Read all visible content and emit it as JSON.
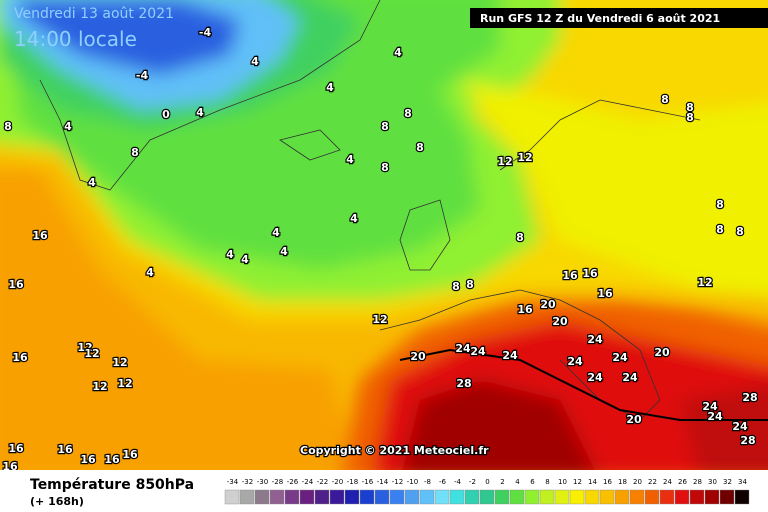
{
  "header": {
    "date": "Vendredi 13 août 2021",
    "local_time": "14:00 locale",
    "run": "Run GFS 12 Z du Vendredi 6 août 2021"
  },
  "copyright": "Copyright © 2021 Meteociel.fr",
  "footer": {
    "title": "Température 850hPa",
    "lead": "(+ 168h)"
  },
  "legend": {
    "labels": [
      -34,
      -32,
      -30,
      -28,
      -26,
      -24,
      -22,
      -20,
      -18,
      -16,
      -14,
      -12,
      -10,
      -8,
      -6,
      -4,
      -2,
      0,
      2,
      4,
      6,
      8,
      10,
      12,
      14,
      16,
      18,
      20,
      22,
      24,
      26,
      28,
      30,
      32,
      34
    ],
    "colors": [
      "#d0d0d0",
      "#a8a8a8",
      "#8c7a8c",
      "#906090",
      "#7a3a8a",
      "#6a2080",
      "#50208a",
      "#3a1a9a",
      "#2020b0",
      "#1a40d0",
      "#2a60e0",
      "#3a80f0",
      "#50a0f0",
      "#60c0f8",
      "#70e0f8",
      "#40e0e0",
      "#30d0b0",
      "#30c890",
      "#40d060",
      "#60e040",
      "#90f030",
      "#c0f020",
      "#e0f010",
      "#f8f000",
      "#f8d800",
      "#f8c000",
      "#f8a000",
      "#f88000",
      "#f06000",
      "#e83010",
      "#e01010",
      "#c00808",
      "#a00000",
      "#700000",
      "#100000"
    ]
  },
  "map": {
    "contour_labels": [
      -4,
      -4,
      4,
      4,
      4,
      4,
      0,
      8,
      8,
      4,
      4,
      8,
      8,
      8,
      8,
      4,
      4,
      4,
      4,
      4,
      4,
      4,
      16,
      16,
      16,
      12,
      12,
      12,
      12,
      12,
      12,
      8,
      8,
      8,
      12,
      12,
      16,
      16,
      16,
      16,
      20,
      20,
      20,
      24,
      24,
      24,
      24,
      24,
      24,
      24,
      24,
      20,
      28,
      20,
      24,
      24,
      24,
      28,
      28,
      8,
      8,
      8,
      8,
      8,
      8,
      12,
      16,
      16,
      16,
      16,
      16,
      16
    ]
  }
}
